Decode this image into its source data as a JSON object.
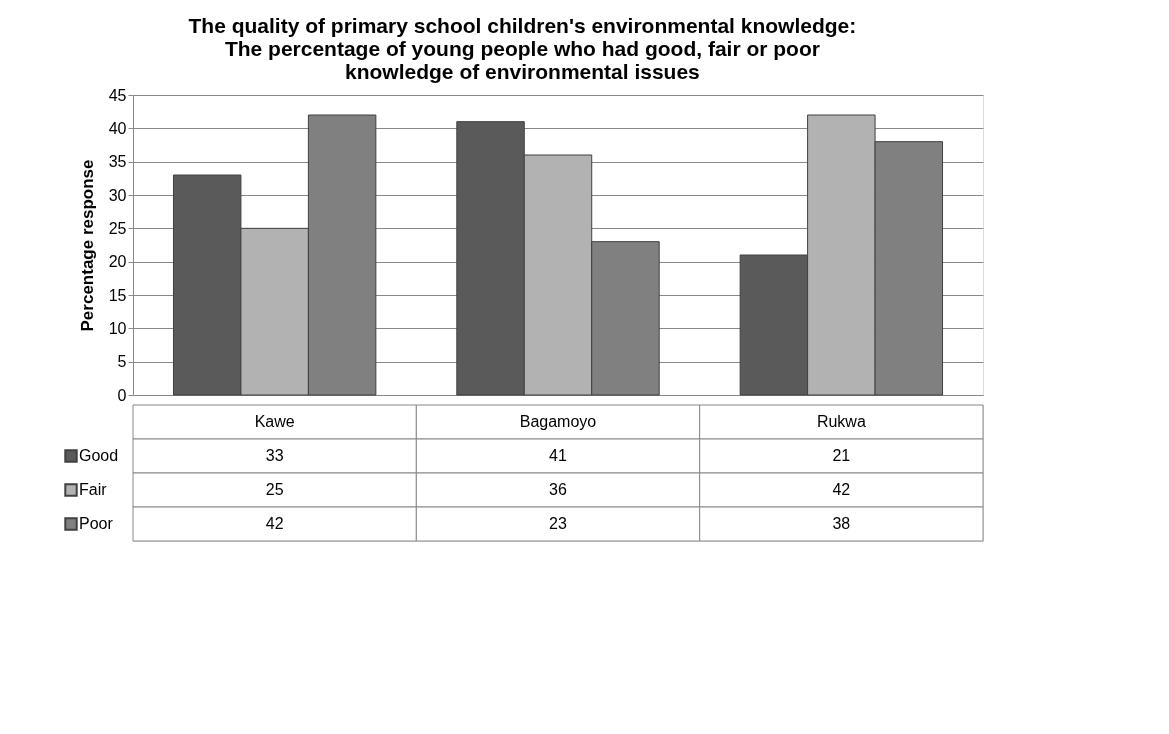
{
  "chart_data": {
    "type": "bar",
    "title": "The quality of primary school children's environmental knowledge: The percentage of young people who had good, fair or poor knowledge of environmental issues",
    "ylabel": "Percentage response",
    "categories": [
      "Kawe",
      "Bagamoyo",
      "Rukwa"
    ],
    "series": [
      {
        "name": "Good",
        "color": "#5a5a5a",
        "values": [
          33,
          41,
          21
        ]
      },
      {
        "name": "Fair",
        "color": "#b2b2b2",
        "values": [
          25,
          36,
          42
        ]
      },
      {
        "name": "Poor",
        "color": "#808080",
        "values": [
          42,
          23,
          38
        ]
      }
    ],
    "ylim": [
      0,
      45
    ],
    "yticks": [
      0,
      5,
      10,
      15,
      20,
      25,
      30,
      35,
      40,
      45
    ],
    "grid": "y",
    "legend": "bottom",
    "data_labels": true
  }
}
